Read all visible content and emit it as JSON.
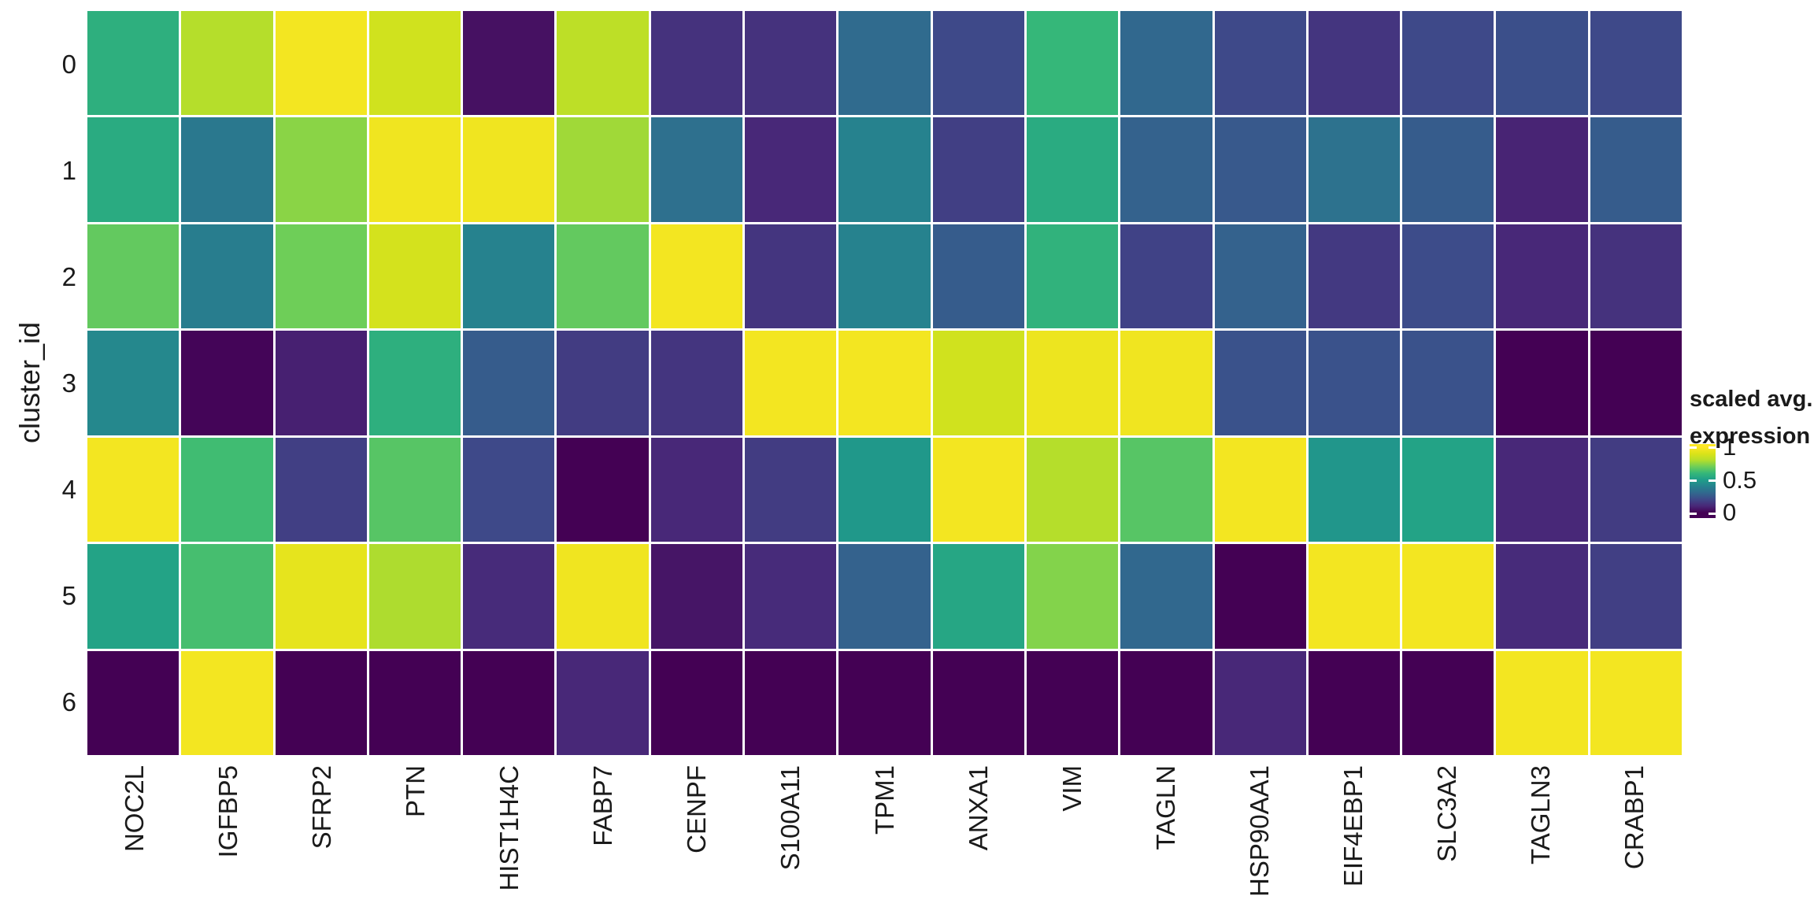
{
  "figure": {
    "y_axis": {
      "title": "cluster_id",
      "tick_labels": [
        "0",
        "1",
        "2",
        "3",
        "4",
        "5",
        "6"
      ]
    },
    "x_axis": {
      "tick_labels": [
        "NOC2L",
        "IGFBP5",
        "SFRP2",
        "PTN",
        "HIST1H4C",
        "FABP7",
        "CENPF",
        "S100A11",
        "TPM1",
        "ANXA1",
        "VIM",
        "TAGLN",
        "HSP90AA1",
        "EIF4EBP1",
        "SLC3A2",
        "TAGLN3",
        "CRABP1"
      ]
    },
    "legend": {
      "title_line1": "scaled avg.",
      "title_line2": "expression",
      "tick_labels": [
        "1",
        "0.5",
        "0"
      ]
    }
  },
  "colors": {
    "background": "#ffffff",
    "text": "#1a1a1a",
    "cell_gap": "#ffffff",
    "viridis_stops": [
      "#440154",
      "#482878",
      "#3e4989",
      "#31688e",
      "#26828e",
      "#1f9e89",
      "#35b779",
      "#6ece58",
      "#b5de2b",
      "#dce319",
      "#fde725"
    ]
  },
  "chart_data": {
    "type": "heatmap",
    "title": "",
    "xlabel": "",
    "ylabel": "cluster_id",
    "legend_title": "scaled avg. expression",
    "colorscale": "viridis",
    "zmin": 0,
    "zmax": 1,
    "legend_ticks": [
      1,
      0.5,
      0
    ],
    "x": [
      "NOC2L",
      "IGFBP5",
      "SFRP2",
      "PTN",
      "HIST1H4C",
      "FABP7",
      "CENPF",
      "S100A11",
      "TPM1",
      "ANXA1",
      "VIM",
      "TAGLN",
      "HSP90AA1",
      "EIF4EBP1",
      "SLC3A2",
      "TAGLN3",
      "CRABP1"
    ],
    "y": [
      "0",
      "1",
      "2",
      "3",
      "4",
      "5",
      "6"
    ],
    "values": [
      [
        0.57,
        0.8,
        0.97,
        0.87,
        0.04,
        0.82,
        0.13,
        0.13,
        0.31,
        0.2,
        0.6,
        0.3,
        0.2,
        0.14,
        0.2,
        0.22,
        0.2
      ],
      [
        0.55,
        0.36,
        0.74,
        0.96,
        0.96,
        0.77,
        0.33,
        0.1,
        0.4,
        0.17,
        0.55,
        0.28,
        0.25,
        0.34,
        0.26,
        0.09,
        0.26
      ],
      [
        0.68,
        0.38,
        0.7,
        0.88,
        0.4,
        0.68,
        0.97,
        0.14,
        0.4,
        0.26,
        0.58,
        0.18,
        0.28,
        0.15,
        0.21,
        0.1,
        0.13
      ],
      [
        0.42,
        0.01,
        0.08,
        0.57,
        0.26,
        0.16,
        0.14,
        0.97,
        0.97,
        0.87,
        0.95,
        0.96,
        0.23,
        0.23,
        0.23,
        0.0,
        0.0
      ],
      [
        0.97,
        0.62,
        0.17,
        0.66,
        0.2,
        0.0,
        0.1,
        0.16,
        0.48,
        0.97,
        0.8,
        0.66,
        0.97,
        0.47,
        0.52,
        0.1,
        0.16
      ],
      [
        0.52,
        0.63,
        0.93,
        0.79,
        0.11,
        0.96,
        0.05,
        0.11,
        0.28,
        0.53,
        0.73,
        0.3,
        0.0,
        0.97,
        0.97,
        0.11,
        0.17
      ],
      [
        0.0,
        0.97,
        0.0,
        0.0,
        0.0,
        0.1,
        0.0,
        0.0,
        0.0,
        0.0,
        0.0,
        0.0,
        0.1,
        0.0,
        0.0,
        0.97,
        0.97
      ]
    ]
  }
}
